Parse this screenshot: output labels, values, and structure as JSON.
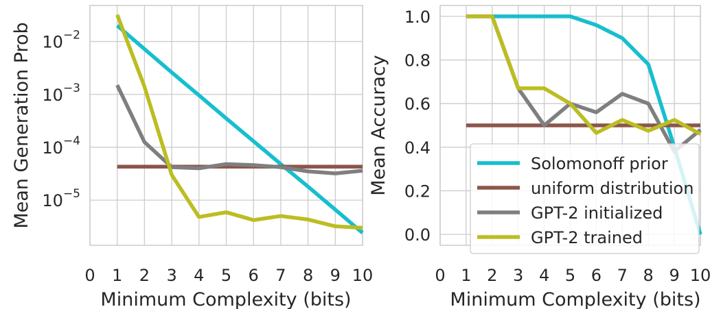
{
  "chart_data": [
    {
      "type": "line",
      "ylabel": "Mean Generation Prob",
      "xlabel": "Minimum Complexity (bits)",
      "yscale": "log",
      "xlim": [
        0,
        10
      ],
      "ylim": [
        1.4e-06,
        0.048
      ],
      "grid": true,
      "x_ticks": [
        0,
        1,
        2,
        3,
        4,
        5,
        6,
        7,
        8,
        9,
        10
      ],
      "x": [
        1,
        2,
        3,
        4,
        5,
        6,
        7,
        8,
        9,
        10
      ],
      "y_ticks": [
        {
          "value": 1e-05,
          "base": "10",
          "exp": "−5"
        },
        {
          "value": 0.0001,
          "base": "10",
          "exp": "−4"
        },
        {
          "value": 0.001,
          "base": "10",
          "exp": "−3"
        },
        {
          "value": 0.01,
          "base": "10",
          "exp": "−2"
        }
      ],
      "series": [
        {
          "name": "Solomonoff prior",
          "color": "#17becf",
          "values": [
            0.02,
            0.0072,
            0.0026,
            0.00096,
            0.00035,
            0.00013,
            4.8e-05,
            1.8e-05,
            6.6e-06,
            2.4e-06
          ]
        },
        {
          "name": "uniform distribution",
          "color": "#8c564b",
          "values": [
            4.3e-05,
            4.3e-05,
            4.3e-05,
            4.3e-05,
            4.3e-05,
            4.3e-05,
            4.3e-05,
            4.3e-05,
            4.3e-05,
            4.3e-05
          ]
        },
        {
          "name": "GPT-2 initialized",
          "color": "#7f7f7f",
          "values": [
            0.0015,
            0.000125,
            4.2e-05,
            4e-05,
            4.8e-05,
            4.6e-05,
            4.2e-05,
            3.5e-05,
            3.2e-05,
            3.6e-05
          ]
        },
        {
          "name": "GPT-2 trained",
          "color": "#bcbd22",
          "values": [
            0.032,
            0.0014,
            3e-05,
            4.8e-06,
            5.9e-06,
            4.2e-06,
            5e-06,
            4.3e-06,
            3.2e-06,
            3e-06
          ]
        }
      ]
    },
    {
      "type": "line",
      "ylabel": "Mean Accuracy",
      "xlabel": "Minimum Complexity (bits)",
      "yscale": "linear",
      "xlim": [
        0,
        10
      ],
      "ylim": [
        -0.05,
        1.05
      ],
      "grid": true,
      "legend_position": "bottom-right",
      "x_ticks": [
        0,
        1,
        2,
        3,
        4,
        5,
        6,
        7,
        8,
        9,
        10
      ],
      "y_ticks": [
        {
          "value": 0.0,
          "label": "0.0"
        },
        {
          "value": 0.2,
          "label": "0.2"
        },
        {
          "value": 0.4,
          "label": "0.4"
        },
        {
          "value": 0.6,
          "label": "0.6"
        },
        {
          "value": 0.8,
          "label": "0.8"
        },
        {
          "value": 1.0,
          "label": "1.0"
        }
      ],
      "x": [
        1,
        2,
        3,
        4,
        5,
        6,
        7,
        8,
        9,
        10
      ],
      "series": [
        {
          "name": "Solomonoff prior",
          "color": "#17becf",
          "values": [
            1.0,
            1.0,
            1.0,
            1.0,
            1.0,
            0.96,
            0.9,
            0.78,
            0.4,
            0.0
          ]
        },
        {
          "name": "uniform distribution",
          "color": "#8c564b",
          "values": [
            0.5,
            0.5,
            0.5,
            0.5,
            0.5,
            0.5,
            0.5,
            0.5,
            0.5,
            0.5
          ]
        },
        {
          "name": "GPT-2 initialized",
          "color": "#7f7f7f",
          "values": [
            1.0,
            1.0,
            0.67,
            0.5,
            0.6,
            0.56,
            0.645,
            0.6,
            0.38,
            0.48
          ]
        },
        {
          "name": "GPT-2 trained",
          "color": "#bcbd22",
          "values": [
            1.0,
            1.0,
            0.67,
            0.67,
            0.6,
            0.465,
            0.525,
            0.475,
            0.525,
            0.46
          ]
        }
      ]
    }
  ],
  "legend": {
    "entries": [
      {
        "label": "Solomonoff prior",
        "color": "#17becf"
      },
      {
        "label": "uniform distribution",
        "color": "#8c564b"
      },
      {
        "label": "GPT-2 initialized",
        "color": "#7f7f7f"
      },
      {
        "label": "GPT-2 trained",
        "color": "#bcbd22"
      }
    ]
  }
}
